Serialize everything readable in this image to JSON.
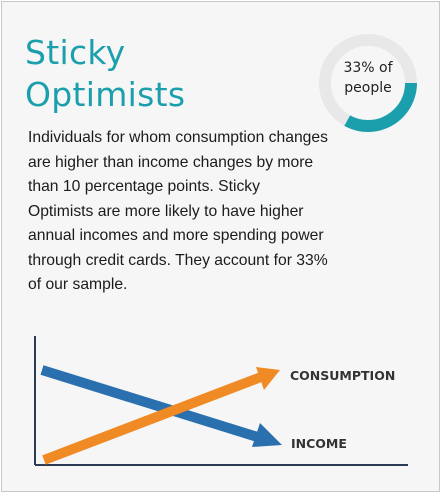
{
  "profile": {
    "title_line1": "Sticky",
    "title_line2": "Optimists",
    "description": "Individuals for whom consumption changes are higher than income changes by more than 10 percentage points. Sticky Optimists are more likely to have higher annual incomes and more spending power through credit cards. They account for 33% of our sample.",
    "share_label_line1": "33% of",
    "share_label_line2": "people",
    "share_fraction": 0.33
  },
  "chart": {
    "consumption_label": "CONSUMPTION",
    "income_label": "INCOME"
  },
  "colors": {
    "title": "#1c9fad",
    "donut_fill": "#1c9fad",
    "donut_track": "#e8e8e8",
    "consumption": "#f08a24",
    "income": "#2a6fae",
    "axis": "#2b3b55"
  }
}
